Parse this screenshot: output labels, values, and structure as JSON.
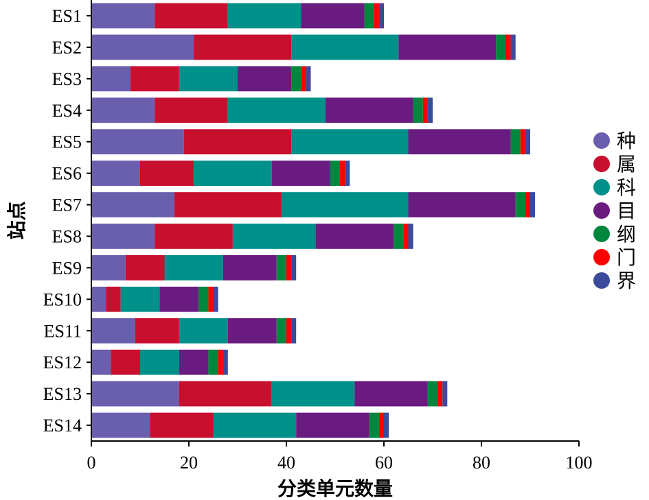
{
  "chart_data": {
    "type": "bar",
    "orientation": "horizontal",
    "stacked": true,
    "title": "",
    "xlabel": "分类单元数量",
    "ylabel": "站点",
    "xlim": [
      0,
      100
    ],
    "xticks": [
      0,
      20,
      40,
      60,
      80,
      100
    ],
    "categories": [
      "ES1",
      "ES2",
      "ES3",
      "ES4",
      "ES5",
      "ES6",
      "ES7",
      "ES8",
      "ES9",
      "ES10",
      "ES11",
      "ES12",
      "ES13",
      "ES14"
    ],
    "series": [
      {
        "name": "种",
        "color": "#6a5fad",
        "values": [
          13,
          21,
          8,
          13,
          19,
          10,
          17,
          13,
          7,
          3,
          9,
          4,
          18,
          12
        ]
      },
      {
        "name": "属",
        "color": "#c8102e",
        "values": [
          15,
          20,
          10,
          15,
          22,
          11,
          22,
          16,
          8,
          3,
          9,
          6,
          19,
          13
        ]
      },
      {
        "name": "科",
        "color": "#00908a",
        "values": [
          15,
          22,
          12,
          20,
          24,
          16,
          26,
          17,
          12,
          8,
          10,
          8,
          17,
          17
        ]
      },
      {
        "name": "目",
        "color": "#6a1b7f",
        "values": [
          13,
          20,
          11,
          18,
          21,
          12,
          22,
          16,
          11,
          8,
          10,
          6,
          15,
          15
        ]
      },
      {
        "name": "纲",
        "color": "#00873e",
        "values": [
          2,
          2,
          2,
          2,
          2,
          2,
          2,
          2,
          2,
          2,
          2,
          2,
          2,
          2
        ]
      },
      {
        "name": "门",
        "color": "#ff0000",
        "values": [
          1,
          1,
          1,
          1,
          1,
          1,
          1,
          1,
          1,
          1,
          1,
          1,
          1,
          1
        ]
      },
      {
        "name": "界",
        "color": "#3b4a9a",
        "values": [
          1,
          1,
          1,
          1,
          1,
          1,
          1,
          1,
          1,
          1,
          1,
          1,
          1,
          1
        ]
      }
    ],
    "grid": false,
    "legend_position": "right"
  }
}
